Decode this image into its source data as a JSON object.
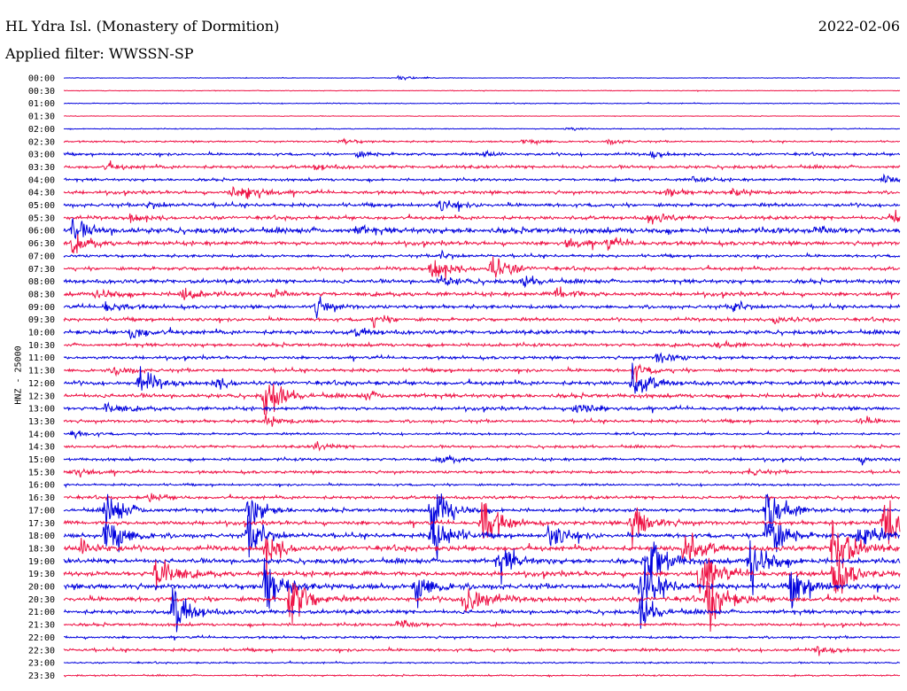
{
  "header": {
    "station": "HL Ydra Isl. (Monastery of Dormition)",
    "date": "2022-02-06",
    "filter": "Applied filter: WWSSN-SP"
  },
  "chart_data": {
    "type": "line",
    "title": "HL Ydra Isl. (Monastery of Dormition)",
    "ylabel": "HNZ - 25000",
    "colors": {
      "even_hour": "#0000dd",
      "half_hour": "#ee1144"
    },
    "tick_labels": [
      "00:00",
      "00:30",
      "01:00",
      "01:30",
      "02:00",
      "02:30",
      "03:00",
      "03:30",
      "04:00",
      "04:30",
      "05:00",
      "05:30",
      "06:00",
      "06:30",
      "07:00",
      "07:30",
      "08:00",
      "08:30",
      "09:00",
      "09:30",
      "10:00",
      "10:30",
      "11:00",
      "11:30",
      "12:00",
      "12:30",
      "13:00",
      "13:30",
      "14:00",
      "14:30",
      "15:00",
      "15:30",
      "16:00",
      "16:30",
      "17:00",
      "17:30",
      "18:00",
      "18:30",
      "19:00",
      "19:30",
      "20:00",
      "20:30",
      "21:00",
      "21:30",
      "22:00",
      "22:30",
      "23:00",
      "23:30"
    ],
    "rows": [
      {
        "noise": 0.3,
        "events": [
          [
            0.4,
            2
          ]
        ]
      },
      {
        "noise": 0.3,
        "events": []
      },
      {
        "noise": 0.4,
        "events": []
      },
      {
        "noise": 0.3,
        "events": []
      },
      {
        "noise": 0.4,
        "events": [
          [
            0.6,
            2
          ]
        ]
      },
      {
        "noise": 0.8,
        "events": [
          [
            0.33,
            3
          ],
          [
            0.55,
            4
          ],
          [
            0.65,
            3
          ]
        ]
      },
      {
        "noise": 1.2,
        "events": [
          [
            0.35,
            3
          ],
          [
            0.5,
            3
          ],
          [
            0.7,
            3
          ]
        ]
      },
      {
        "noise": 1.4,
        "events": [
          [
            0.05,
            3
          ],
          [
            0.3,
            3
          ]
        ]
      },
      {
        "noise": 1.2,
        "events": [
          [
            0.75,
            4
          ],
          [
            0.98,
            5
          ]
        ]
      },
      {
        "noise": 1.5,
        "events": [
          [
            0.2,
            5
          ],
          [
            0.22,
            7
          ],
          [
            0.72,
            4
          ],
          [
            0.8,
            4
          ]
        ]
      },
      {
        "noise": 1.6,
        "events": [
          [
            0.1,
            4
          ],
          [
            0.45,
            6
          ]
        ]
      },
      {
        "noise": 1.6,
        "events": [
          [
            0.08,
            5
          ],
          [
            0.7,
            6
          ],
          [
            0.99,
            12
          ]
        ]
      },
      {
        "noise": 2.5,
        "events": [
          [
            0.01,
            12
          ],
          [
            0.35,
            4
          ],
          [
            0.9,
            4
          ]
        ]
      },
      {
        "noise": 1.8,
        "events": [
          [
            0.01,
            9
          ],
          [
            0.6,
            6
          ],
          [
            0.65,
            5
          ]
        ]
      },
      {
        "noise": 1.3,
        "events": [
          [
            0.45,
            4
          ]
        ]
      },
      {
        "noise": 1.5,
        "events": [
          [
            0.44,
            16
          ],
          [
            0.51,
            18
          ]
        ]
      },
      {
        "noise": 1.8,
        "events": [
          [
            0.45,
            6
          ],
          [
            0.55,
            5
          ]
        ]
      },
      {
        "noise": 1.8,
        "events": [
          [
            0.04,
            6
          ],
          [
            0.14,
            8
          ],
          [
            0.59,
            8
          ],
          [
            0.25,
            4
          ]
        ]
      },
      {
        "noise": 1.6,
        "events": [
          [
            0.05,
            6
          ],
          [
            0.3,
            10
          ],
          [
            0.8,
            6
          ]
        ]
      },
      {
        "noise": 1.5,
        "events": [
          [
            0.37,
            6
          ],
          [
            0.85,
            6
          ]
        ]
      },
      {
        "noise": 1.8,
        "events": [
          [
            0.08,
            8
          ],
          [
            0.35,
            4
          ]
        ]
      },
      {
        "noise": 1.5,
        "events": [
          [
            0.78,
            4
          ]
        ]
      },
      {
        "noise": 1.4,
        "events": [
          [
            0.71,
            8
          ]
        ]
      },
      {
        "noise": 1.5,
        "events": [
          [
            0.06,
            5
          ],
          [
            0.68,
            8
          ]
        ]
      },
      {
        "noise": 1.8,
        "events": [
          [
            0.09,
            14
          ],
          [
            0.18,
            6
          ],
          [
            0.68,
            18
          ]
        ]
      },
      {
        "noise": 1.8,
        "events": [
          [
            0.24,
            22
          ],
          [
            0.36,
            4
          ]
        ]
      },
      {
        "noise": 1.6,
        "events": [
          [
            0.05,
            6
          ],
          [
            0.61,
            8
          ]
        ]
      },
      {
        "noise": 1.4,
        "events": [
          [
            0.24,
            6
          ],
          [
            0.95,
            4
          ]
        ]
      },
      {
        "noise": 1.0,
        "events": [
          [
            0.01,
            4
          ]
        ]
      },
      {
        "noise": 1.2,
        "events": [
          [
            0.3,
            4
          ]
        ]
      },
      {
        "noise": 1.3,
        "events": [
          [
            0.45,
            4
          ],
          [
            0.95,
            4
          ]
        ]
      },
      {
        "noise": 1.3,
        "events": [
          [
            0.01,
            6
          ],
          [
            0.82,
            4
          ]
        ]
      },
      {
        "noise": 1.0,
        "events": []
      },
      {
        "noise": 1.4,
        "events": [
          [
            0.1,
            4
          ]
        ]
      },
      {
        "noise": 1.6,
        "events": [
          [
            0.05,
            22
          ],
          [
            0.22,
            18
          ],
          [
            0.44,
            30
          ],
          [
            0.84,
            30
          ]
        ]
      },
      {
        "noise": 1.8,
        "events": [
          [
            0.5,
            30
          ],
          [
            0.68,
            26
          ],
          [
            0.98,
            38
          ]
        ]
      },
      {
        "noise": 2.0,
        "events": [
          [
            0.05,
            32
          ],
          [
            0.22,
            24
          ],
          [
            0.44,
            30
          ],
          [
            0.58,
            16
          ],
          [
            0.84,
            30
          ],
          [
            0.95,
            20
          ]
        ]
      },
      {
        "noise": 2.2,
        "events": [
          [
            0.02,
            10
          ],
          [
            0.24,
            20
          ],
          [
            0.74,
            26
          ],
          [
            0.92,
            40
          ]
        ]
      },
      {
        "noise": 2.2,
        "events": [
          [
            0.52,
            18
          ],
          [
            0.7,
            30
          ],
          [
            0.82,
            30
          ]
        ]
      },
      {
        "noise": 2.2,
        "events": [
          [
            0.11,
            24
          ],
          [
            0.76,
            30
          ],
          [
            0.92,
            28
          ]
        ]
      },
      {
        "noise": 2.4,
        "events": [
          [
            0.24,
            30
          ],
          [
            0.42,
            20
          ],
          [
            0.69,
            36
          ],
          [
            0.87,
            24
          ]
        ]
      },
      {
        "noise": 2.2,
        "events": [
          [
            0.27,
            30
          ],
          [
            0.48,
            26
          ],
          [
            0.77,
            32
          ]
        ]
      },
      {
        "noise": 1.8,
        "events": [
          [
            0.13,
            26
          ],
          [
            0.69,
            16
          ]
        ]
      },
      {
        "noise": 1.3,
        "events": [
          [
            0.4,
            6
          ]
        ]
      },
      {
        "noise": 1.1,
        "events": []
      },
      {
        "noise": 1.3,
        "events": [
          [
            0.9,
            4
          ]
        ]
      },
      {
        "noise": 0.7,
        "events": []
      },
      {
        "noise": 0.7,
        "events": []
      }
    ]
  }
}
